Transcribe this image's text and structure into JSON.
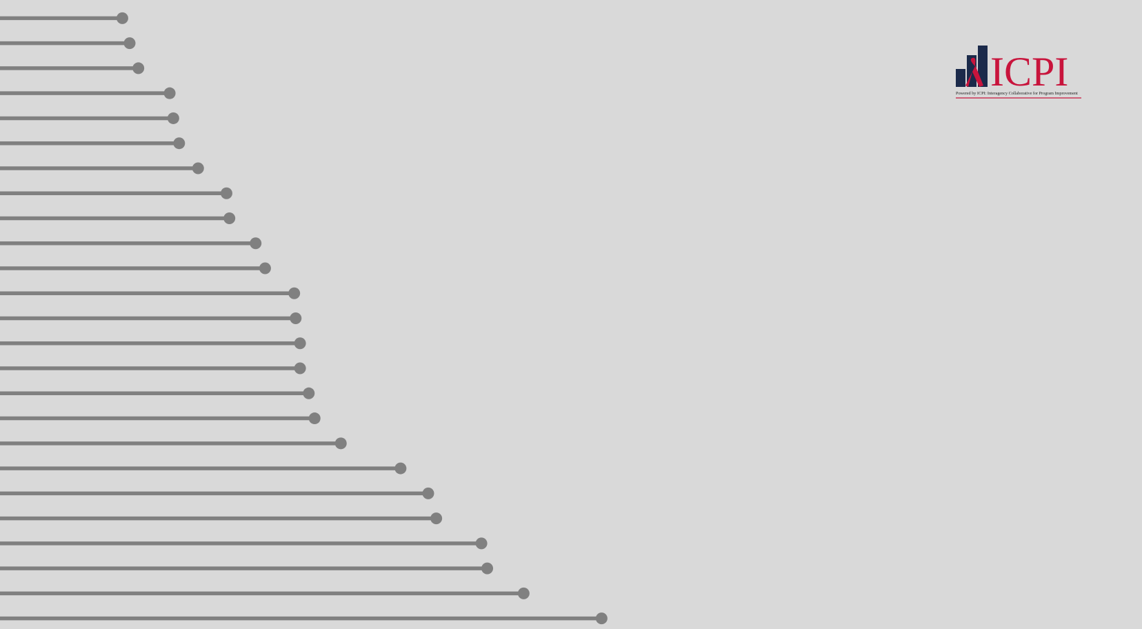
{
  "chart_data": {
    "type": "lollipop",
    "color": "#808080",
    "xlim": [
      0,
      1568
    ],
    "values": [
      168,
      178,
      190,
      233,
      238,
      246,
      272,
      311,
      315,
      351,
      364,
      404,
      406,
      412,
      412,
      424,
      432,
      468,
      550,
      588,
      599,
      661,
      669,
      719,
      826
    ]
  },
  "logo": {
    "name": "ICPI",
    "tagline": "Powered by ICPI: Interagency Collaborative for Program Improvement"
  }
}
